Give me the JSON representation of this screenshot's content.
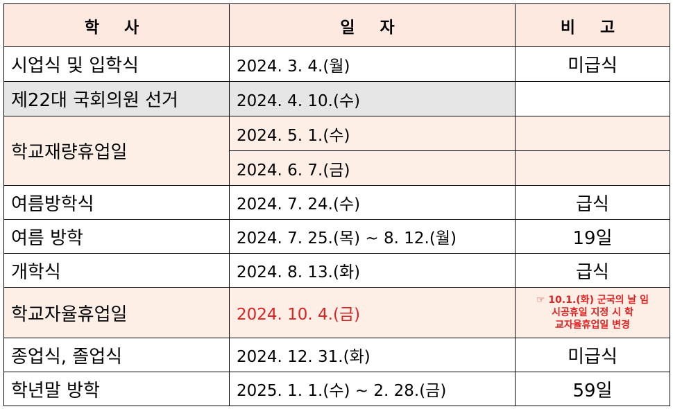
{
  "headers": {
    "event": "학 사",
    "date": "일 자",
    "note": "비 고"
  },
  "rows": [
    {
      "event": "시업식 및 입학식",
      "date": "2024. 3. 4.(월)",
      "note": "미급식"
    },
    {
      "event": "제22대 국회의원 선거",
      "date": "2024. 4. 10.(수)",
      "note": ""
    },
    {
      "event": "학교재량휴업일",
      "date": "2024. 5. 1.(수)",
      "note": ""
    },
    {
      "date": "2024. 6. 7.(금)",
      "note": ""
    },
    {
      "event": "여름방학식",
      "date": "2024. 7. 24.(수)",
      "note": "급식"
    },
    {
      "event": "여름 방학",
      "date": "2024. 7. 25.(목) ~ 8. 12.(월)",
      "note": "19일"
    },
    {
      "event": "개학식",
      "date": "2024. 8. 13.(화)",
      "note": "급식"
    },
    {
      "event": "학교자율휴업일",
      "date": "2024. 10. 4.(금)",
      "note_lines": [
        "☞ 10.1.(화) 군국의 날 임",
        "시공휴일 지정 시 학",
        "교자율휴업일 변경"
      ]
    },
    {
      "event": "종업식, 졸업식",
      "date": "2024. 12. 31.(화)",
      "note": "미급식"
    },
    {
      "event": "학년말 방학",
      "date": "2025. 1. 1.(수) ~ 2. 28.(금)",
      "note": "59일"
    }
  ],
  "colors": {
    "header_bg": "#fde9df",
    "highlight_bg": "#fdeee6",
    "gray_bg": "#e6e6e6",
    "red_text": "#e02020"
  }
}
